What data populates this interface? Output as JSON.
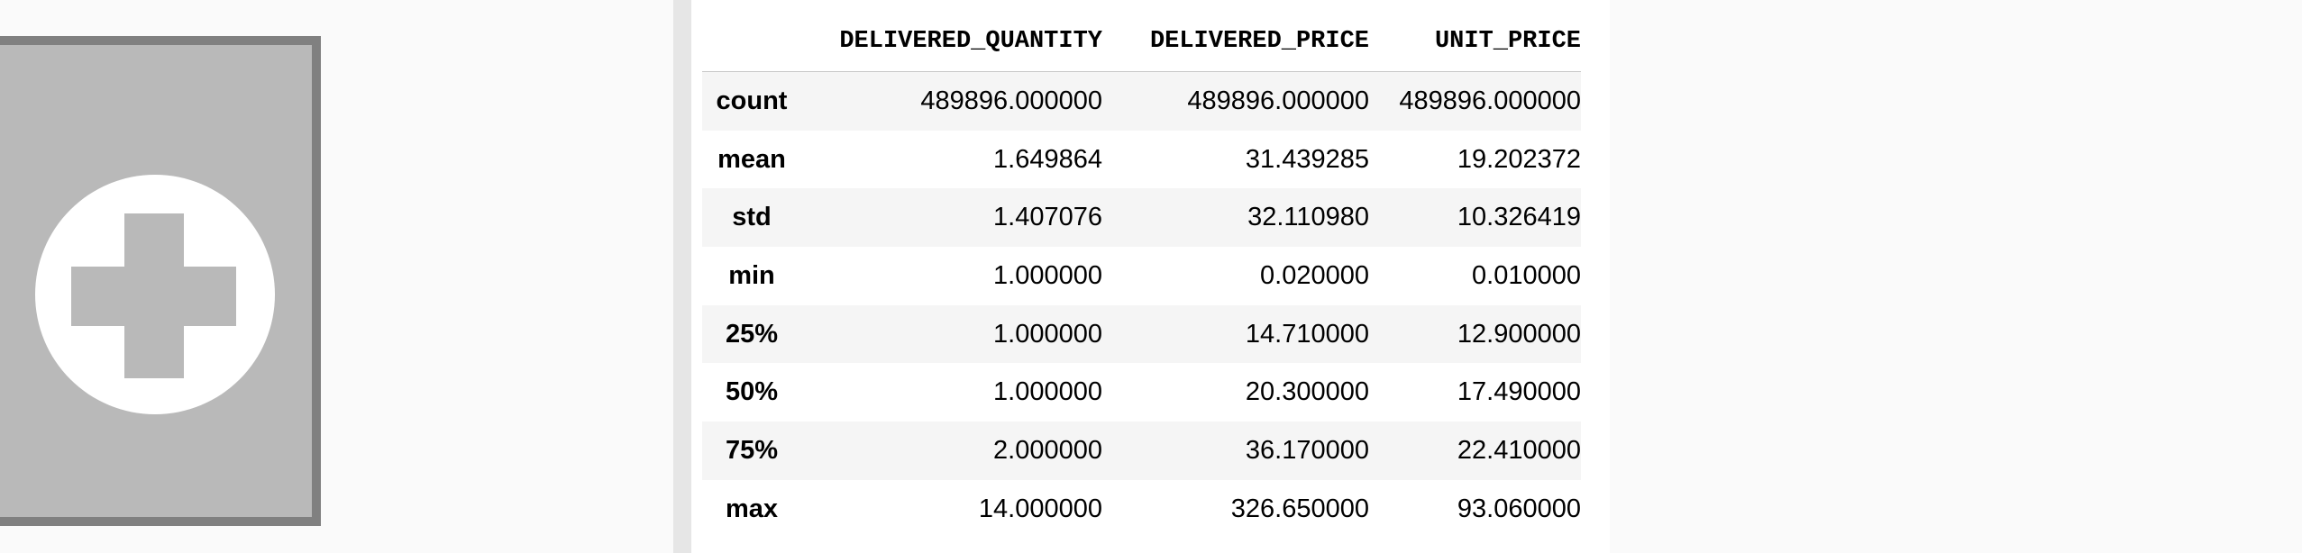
{
  "left_tile": {
    "icon": "plus-circle-icon",
    "colors": {
      "fill": "#b9b9b9",
      "border": "#808080",
      "circle": "#ffffff"
    }
  },
  "table": {
    "columns": [
      "DELIVERED_QUANTITY",
      "DELIVERED_PRICE",
      "UNIT_PRICE"
    ],
    "rows": [
      {
        "label": "count",
        "values": [
          "489896.000000",
          "489896.000000",
          "489896.000000"
        ]
      },
      {
        "label": "mean",
        "values": [
          "1.649864",
          "31.439285",
          "19.202372"
        ]
      },
      {
        "label": "std",
        "values": [
          "1.407076",
          "32.110980",
          "10.326419"
        ]
      },
      {
        "label": "min",
        "values": [
          "1.000000",
          "0.020000",
          "0.010000"
        ]
      },
      {
        "label": "25%",
        "values": [
          "1.000000",
          "14.710000",
          "12.900000"
        ]
      },
      {
        "label": "50%",
        "values": [
          "1.000000",
          "20.300000",
          "17.490000"
        ]
      },
      {
        "label": "75%",
        "values": [
          "2.000000",
          "36.170000",
          "22.410000"
        ]
      },
      {
        "label": "max",
        "values": [
          "14.000000",
          "326.650000",
          "93.060000"
        ]
      }
    ]
  }
}
